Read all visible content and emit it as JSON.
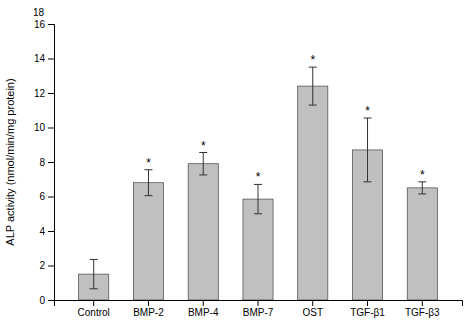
{
  "chart_data": {
    "type": "bar",
    "categories": [
      "Control",
      "BMP-2",
      "BMP-4",
      "BMP-7",
      "OST",
      "TGF-β1",
      "TGF-β3"
    ],
    "values": [
      1.5,
      6.8,
      7.9,
      5.85,
      12.4,
      8.7,
      6.5
    ],
    "errors": [
      0.85,
      0.75,
      0.65,
      0.85,
      1.1,
      1.85,
      0.35
    ],
    "color": "#c0c0c0",
    "y_label": "ALP activity (nmol/min/mg protein)",
    "ylim": [
      0,
      16
    ],
    "yticks": [
      0,
      2,
      4,
      6,
      8,
      10,
      12,
      14,
      16
    ],
    "grid": false,
    "annotations": [
      {
        "text": "*",
        "x": "BMP-2"
      },
      {
        "text": "*",
        "x": "BMP-4"
      },
      {
        "text": "*",
        "x": "BMP-7"
      },
      {
        "text": "*",
        "x": "OST"
      },
      {
        "text": "*",
        "x": "TGF-β1"
      },
      {
        "text": "*",
        "x": "TGF-β3"
      },
      {
        "text": "18"
      }
    ]
  }
}
